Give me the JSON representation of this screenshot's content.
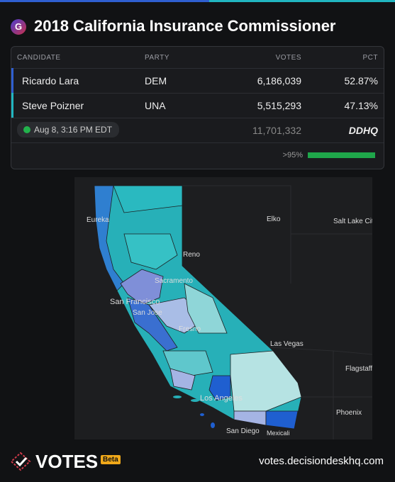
{
  "header": {
    "icon": "G",
    "title": "2018 California Insurance Commissioner"
  },
  "table": {
    "columns": [
      "CANDIDATE",
      "PARTY",
      "VOTES",
      "PCT"
    ],
    "rows": [
      [
        "Ricardo Lara",
        "DEM",
        "6,186,039",
        "52.87%"
      ],
      [
        "Steve Poizner",
        "UNA",
        "5,515,293",
        "47.13%"
      ]
    ],
    "updated": "Aug 8, 3:16 PM EDT",
    "total": "11,701,332",
    "source": "DDHQ",
    "reporting": ">95%"
  },
  "map": {
    "labels": [
      "Eureka",
      "Elko",
      "Salt Lake Cit",
      "Reno",
      "Sacramento",
      "San Francisco",
      "San Jose",
      "Fresno",
      "Las Vegas",
      "Flagstaff",
      "Los Angeles",
      "Phoenix",
      "San Diego",
      "Mexicali"
    ]
  },
  "footer": {
    "brand": "VOTES",
    "badge": "Beta",
    "url": "votes.decisiondeskhq.com"
  }
}
